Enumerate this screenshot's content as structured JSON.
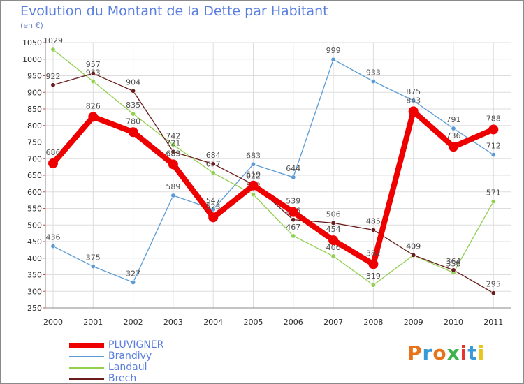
{
  "header": {
    "title": "Evolution du Montant de la Dette par Habitant",
    "subtitle": "(en €)"
  },
  "logo": {
    "text": "Proxiti",
    "colors": [
      "#e8731a",
      "#3a9ad9",
      "#e8731a",
      "#3cb44b",
      "#e3342f",
      "#3a9ad9",
      "#e8c51a"
    ]
  },
  "colors": {
    "title": "#5a7ee0",
    "grid": "#dddddd",
    "axis": "#888888"
  },
  "chart_data": {
    "type": "line",
    "title": "Evolution du Montant de la Dette par Habitant",
    "subtitle": "(en €)",
    "xlabel": "",
    "ylabel": "",
    "x": [
      "2000",
      "2001",
      "2002",
      "2003",
      "2004",
      "2005",
      "2006",
      "2007",
      "2008",
      "2009",
      "2010",
      "2011"
    ],
    "ylim": [
      250,
      1050
    ],
    "yticks": [
      250,
      300,
      350,
      400,
      450,
      500,
      550,
      600,
      650,
      700,
      750,
      800,
      850,
      900,
      950,
      1000,
      1050
    ],
    "grid": true,
    "legend_position": "bottom-left",
    "series": [
      {
        "name": "Brandivy",
        "color": "#5b9bd5",
        "values": [
          436,
          375,
          327,
          589,
          547,
          683,
          644,
          999,
          933,
          875,
          791,
          712
        ]
      },
      {
        "name": "Landaul",
        "color": "#92d050",
        "values": [
          1029,
          933,
          835,
          742,
          657,
          592,
          467,
          406,
          319,
          409,
          356,
          571
        ]
      },
      {
        "name": "Brech",
        "color": "#6a1c1c",
        "values": [
          922,
          957,
          904,
          721,
          684,
          622,
          516,
          506,
          485,
          409,
          364,
          295
        ]
      },
      {
        "name": "PLUVIGNER",
        "color": "#ee0000",
        "values": [
          686,
          826,
          780,
          683,
          523,
          619,
          539,
          454,
          382,
          843,
          736,
          788
        ]
      }
    ]
  }
}
